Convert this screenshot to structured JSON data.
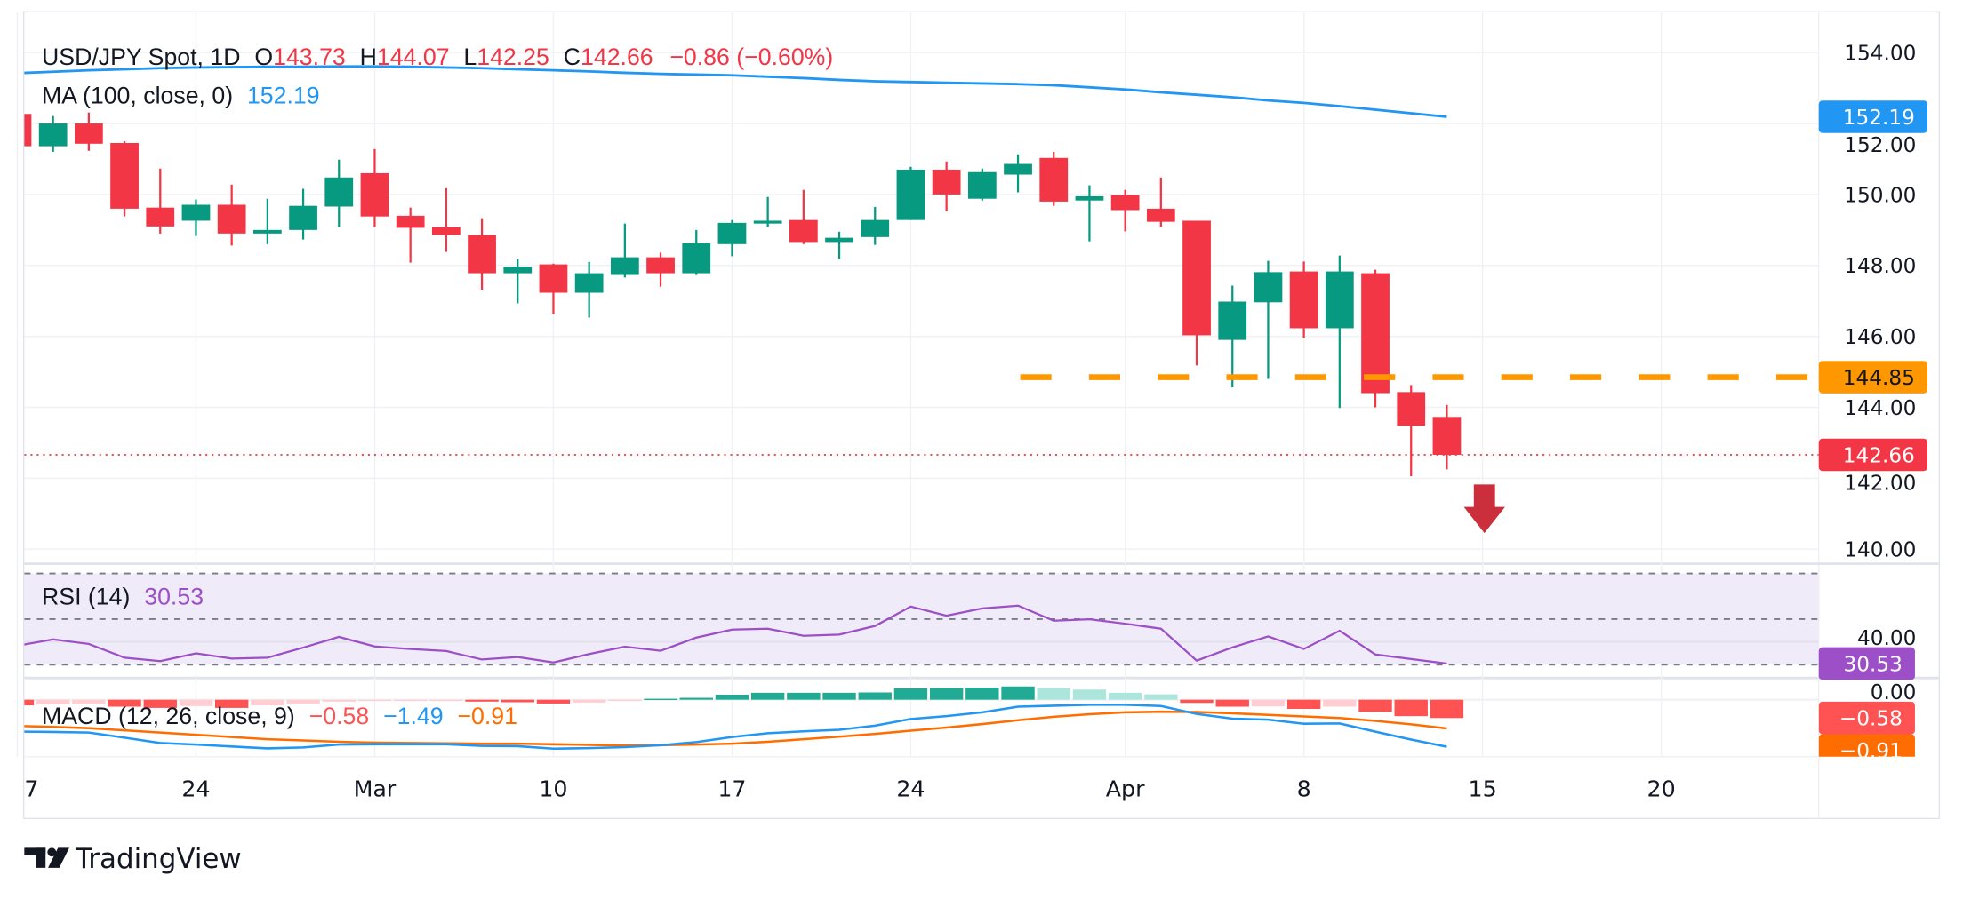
{
  "header": {
    "symbol": "USD/JPY Spot, 1D",
    "o_label": "O",
    "open": "143.73",
    "h_label": "H",
    "high": "144.07",
    "l_label": "L",
    "low": "142.25",
    "c_label": "C",
    "close": "142.66",
    "change": "−0.86 (−0.60%)"
  },
  "ma": {
    "label": "MA (100, close, 0)",
    "value": "152.19"
  },
  "rsi": {
    "label": "RSI (14)",
    "value": "30.53"
  },
  "macd": {
    "label": "MACD (12, 26, close, 9)",
    "hist": "−0.58",
    "macd": "−1.49",
    "signal": "−0.91"
  },
  "price_axis": {
    "ticks": [
      "154.00",
      "152.00",
      "150.00",
      "148.00",
      "146.00",
      "144.00",
      "142.00",
      "140.00"
    ],
    "tags": {
      "ma": "152.19",
      "level": "144.85",
      "last": "142.66"
    }
  },
  "rsi_axis": {
    "ticks": [
      "40.00"
    ],
    "tag": "30.53"
  },
  "macd_axis": {
    "ticks": [
      "0.00"
    ],
    "tags": {
      "hist": "−0.58",
      "signal": "−0.91"
    }
  },
  "time_axis": [
    "7",
    "24",
    "Mar",
    "10",
    "17",
    "24",
    "Apr",
    "8",
    "15",
    "20"
  ],
  "logo": {
    "text": "TradingView"
  },
  "colors": {
    "up": "#089981",
    "down": "#F23645",
    "ma": "#2196F3",
    "level": "#FF9800",
    "arrow": "#CC2F3C",
    "rsi": "#9C4FC6",
    "rsi_band": "#EFEBF8",
    "macd": "#2196F3",
    "signal": "#FF6D00",
    "hist_up_strong": "#22AB94",
    "hist_up_weak": "#ACE5DC",
    "hist_down_strong": "#FF5252",
    "hist_down_weak": "#FFCDD2",
    "text": "#131722",
    "grid": "#F0F1F4"
  },
  "chart_data": {
    "type": "candlestick",
    "title": "USD/JPY Spot, 1D",
    "x": [
      "Feb 17",
      "Feb 18",
      "Feb 19",
      "Feb 20",
      "Feb 21",
      "Feb 24",
      "Feb 25",
      "Feb 26",
      "Feb 27",
      "Feb 28",
      "Mar 3",
      "Mar 4",
      "Mar 5",
      "Mar 6",
      "Mar 7",
      "Mar 10",
      "Mar 11",
      "Mar 12",
      "Mar 13",
      "Mar 14",
      "Mar 17",
      "Mar 18",
      "Mar 19",
      "Mar 20",
      "Mar 21",
      "Mar 24",
      "Mar 25",
      "Mar 26",
      "Mar 27",
      "Mar 28",
      "Mar 31",
      "Apr 1",
      "Apr 2",
      "Apr 3",
      "Apr 4",
      "Apr 7",
      "Apr 8",
      "Apr 9",
      "Apr 10",
      "Apr 11",
      "Apr 14"
    ],
    "ohlc": [
      [
        152.27,
        152.35,
        151.3,
        151.36
      ],
      [
        151.36,
        152.21,
        151.2,
        152.0
      ],
      [
        152.0,
        152.31,
        151.23,
        151.43
      ],
      [
        151.45,
        151.5,
        149.38,
        149.6
      ],
      [
        149.63,
        150.73,
        148.9,
        149.1
      ],
      [
        149.26,
        149.86,
        148.83,
        149.71
      ],
      [
        149.71,
        150.28,
        148.56,
        148.9
      ],
      [
        148.9,
        149.88,
        148.6,
        149.0
      ],
      [
        149.0,
        150.16,
        148.73,
        149.68
      ],
      [
        149.66,
        150.98,
        149.08,
        150.48
      ],
      [
        150.6,
        151.28,
        149.08,
        149.38
      ],
      [
        149.4,
        149.63,
        148.08,
        149.06
      ],
      [
        149.08,
        150.18,
        148.38,
        148.86
      ],
      [
        148.86,
        149.33,
        147.3,
        147.78
      ],
      [
        147.78,
        148.18,
        146.93,
        147.96
      ],
      [
        148.03,
        148.05,
        146.63,
        147.23
      ],
      [
        147.23,
        148.1,
        146.53,
        147.78
      ],
      [
        147.73,
        149.18,
        147.66,
        148.23
      ],
      [
        148.23,
        148.36,
        147.4,
        147.78
      ],
      [
        147.78,
        149.0,
        147.73,
        148.63
      ],
      [
        148.6,
        149.28,
        148.26,
        149.2
      ],
      [
        149.18,
        149.93,
        149.08,
        149.26
      ],
      [
        149.28,
        150.13,
        148.6,
        148.66
      ],
      [
        148.66,
        148.95,
        148.18,
        148.78
      ],
      [
        148.8,
        149.65,
        148.58,
        149.28
      ],
      [
        149.28,
        150.78,
        149.28,
        150.7
      ],
      [
        150.7,
        150.93,
        149.53,
        150.0
      ],
      [
        149.88,
        150.73,
        149.83,
        150.63
      ],
      [
        150.56,
        151.13,
        150.06,
        150.86
      ],
      [
        151.03,
        151.2,
        149.68,
        149.8
      ],
      [
        149.83,
        150.26,
        148.68,
        149.95
      ],
      [
        149.98,
        150.13,
        148.96,
        149.56
      ],
      [
        149.6,
        150.48,
        149.08,
        149.23
      ],
      [
        149.26,
        149.26,
        145.18,
        146.03
      ],
      [
        145.9,
        147.43,
        144.56,
        146.98
      ],
      [
        146.96,
        148.13,
        144.8,
        147.81
      ],
      [
        147.83,
        148.11,
        145.96,
        146.23
      ],
      [
        146.23,
        148.28,
        143.98,
        147.83
      ],
      [
        147.78,
        147.88,
        144.0,
        144.4
      ],
      [
        144.43,
        144.63,
        142.06,
        143.48
      ],
      [
        143.73,
        144.07,
        142.25,
        142.66
      ]
    ],
    "ma100": [
      153.42,
      153.46,
      153.5,
      153.53,
      153.56,
      153.58,
      153.59,
      153.6,
      153.6,
      153.61,
      153.61,
      153.6,
      153.58,
      153.56,
      153.53,
      153.5,
      153.47,
      153.43,
      153.4,
      153.38,
      153.36,
      153.32,
      153.28,
      153.23,
      153.19,
      153.17,
      153.15,
      153.13,
      153.11,
      153.08,
      153.02,
      152.96,
      152.88,
      152.81,
      152.74,
      152.65,
      152.58,
      152.49,
      152.39,
      152.29,
      152.19
    ],
    "ylim": [
      140,
      154
    ],
    "annotations": {
      "horizontal_level": 144.85,
      "last_price": 142.66,
      "arrow": "down"
    },
    "rsi": {
      "values": [
        38.3,
        41.1,
        39.1,
        33.1,
        31.6,
        35.0,
        32.7,
        33.1,
        37.5,
        42.2,
        38.0,
        36.9,
        36.0,
        32.3,
        33.4,
        31.0,
        34.7,
        37.9,
        36.1,
        41.9,
        45.4,
        45.8,
        42.7,
        43.2,
        47.0,
        55.5,
        51.5,
        54.7,
        55.9,
        49.3,
        49.9,
        48.0,
        45.8,
        31.8,
        37.6,
        42.4,
        36.9,
        44.9,
        34.5,
        32.5,
        30.53
      ],
      "bands": [
        70,
        50,
        30
      ]
    },
    "macd": {
      "macd": [
        -1.01,
        -1.02,
        -1.04,
        -1.2,
        -1.37,
        -1.42,
        -1.48,
        -1.54,
        -1.51,
        -1.42,
        -1.41,
        -1.41,
        -1.41,
        -1.46,
        -1.47,
        -1.55,
        -1.53,
        -1.5,
        -1.44,
        -1.34,
        -1.18,
        -1.06,
        -1.0,
        -0.95,
        -0.82,
        -0.61,
        -0.52,
        -0.4,
        -0.22,
        -0.19,
        -0.16,
        -0.16,
        -0.2,
        -0.45,
        -0.6,
        -0.63,
        -0.76,
        -0.75,
        -1.01,
        -1.26,
        -1.49
      ],
      "signal": [
        -0.83,
        -0.86,
        -0.9,
        -0.97,
        -1.04,
        -1.11,
        -1.18,
        -1.25,
        -1.29,
        -1.33,
        -1.36,
        -1.37,
        -1.38,
        -1.39,
        -1.39,
        -1.41,
        -1.43,
        -1.45,
        -1.44,
        -1.42,
        -1.39,
        -1.33,
        -1.25,
        -1.17,
        -1.08,
        -0.98,
        -0.88,
        -0.77,
        -0.65,
        -0.54,
        -0.46,
        -0.4,
        -0.38,
        -0.39,
        -0.43,
        -0.48,
        -0.53,
        -0.58,
        -0.67,
        -0.78,
        -0.91
      ],
      "histogram": [
        -0.18,
        -0.14,
        -0.12,
        -0.22,
        -0.26,
        -0.2,
        -0.26,
        -0.18,
        -0.12,
        -0.06,
        -0.04,
        -0.03,
        -0.02,
        -0.06,
        -0.08,
        -0.12,
        -0.09,
        -0.04,
        0.03,
        0.06,
        0.16,
        0.22,
        0.22,
        0.22,
        0.23,
        0.36,
        0.37,
        0.38,
        0.42,
        0.37,
        0.32,
        0.22,
        0.17,
        -0.1,
        -0.22,
        -0.21,
        -0.29,
        -0.22,
        -0.38,
        -0.52,
        -0.58
      ]
    }
  }
}
